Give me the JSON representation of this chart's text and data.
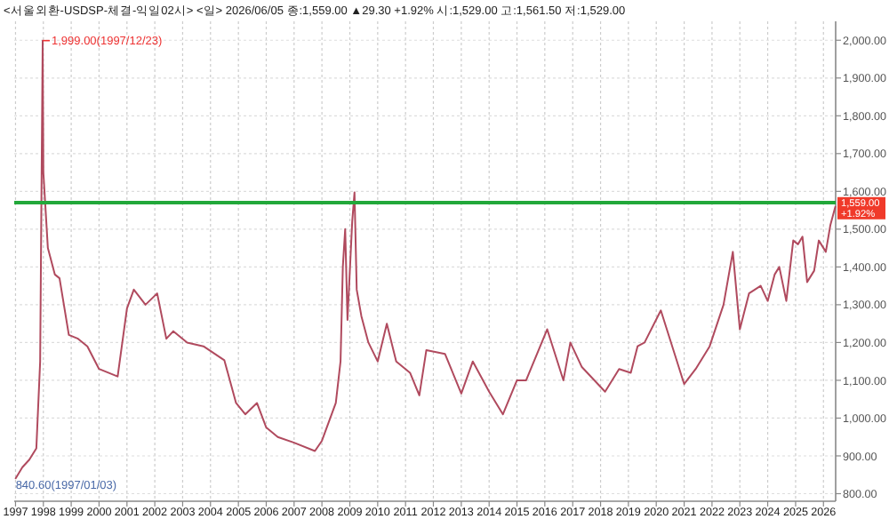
{
  "chart_data": {
    "type": "line",
    "title": "<서울외환-USDSP-체결-익일02시> <일> 2026/06/05 종:1,559.00 ▲29.30 +1.92% 시:1,529.00 고:1,561.50 저:1,529.00",
    "series": [
      {
        "color": "#b04a5e",
        "x": [
          "1997-01-03",
          "1997-04",
          "1997-07",
          "1997-10",
          "1997-11-20",
          "1997-12-23",
          "1998-01",
          "1998-03",
          "1998-06",
          "1998-08",
          "1998-12",
          "1999-04",
          "1999-08",
          "2000-01",
          "2000-09",
          "2001-01",
          "2001-04",
          "2001-09",
          "2002-02",
          "2002-06",
          "2002-09",
          "2003-03",
          "2003-10",
          "2004-07",
          "2004-12",
          "2005-04",
          "2005-09",
          "2006-01",
          "2006-06",
          "2007-01",
          "2007-10",
          "2008-01",
          "2008-04",
          "2008-07",
          "2008-09",
          "2008-10",
          "2008-11",
          "2008-12",
          "2009-02",
          "2009-03-03",
          "2009-04",
          "2009-06",
          "2009-09",
          "2010-01",
          "2010-05",
          "2010-09",
          "2011-03",
          "2011-07",
          "2011-10",
          "2012-06",
          "2013-01",
          "2013-06",
          "2014-01",
          "2014-07",
          "2015-01",
          "2015-05",
          "2016-02",
          "2016-09",
          "2016-12",
          "2017-05",
          "2018-03",
          "2018-09",
          "2019-02",
          "2019-05",
          "2019-08",
          "2020-03",
          "2021-01",
          "2021-06",
          "2021-12",
          "2022-06",
          "2022-10",
          "2023-01",
          "2023-05",
          "2023-10",
          "2024-01",
          "2024-04",
          "2024-06",
          "2024-09",
          "2024-12",
          "2025-02",
          "2025-04",
          "2025-06",
          "2025-09",
          "2025-11",
          "2026-02",
          "2026-04",
          "2026-06-05"
        ],
        "values": [
          840.6,
          870,
          890,
          920,
          1150,
          1999,
          1650,
          1450,
          1380,
          1370,
          1220,
          1210,
          1190,
          1130,
          1110,
          1290,
          1340,
          1300,
          1330,
          1210,
          1230,
          1200,
          1190,
          1153,
          1040,
          1010,
          1040,
          975,
          950,
          935,
          913,
          940,
          990,
          1040,
          1150,
          1400,
          1500,
          1260,
          1520,
          1597,
          1340,
          1270,
          1200,
          1150,
          1250,
          1150,
          1120,
          1060,
          1180,
          1170,
          1065,
          1150,
          1070,
          1010,
          1100,
          1100,
          1235,
          1100,
          1200,
          1135,
          1070,
          1130,
          1120,
          1190,
          1200,
          1285,
          1090,
          1130,
          1190,
          1300,
          1440,
          1235,
          1330,
          1350,
          1310,
          1380,
          1400,
          1310,
          1470,
          1460,
          1480,
          1360,
          1390,
          1470,
          1440,
          1510,
          1559
        ]
      }
    ],
    "xlim": [
      "1996-12-15",
      "2026-06-10"
    ],
    "xticks": [
      "1997",
      "1998",
      "1999",
      "2000",
      "2001",
      "2002",
      "2003",
      "2004",
      "2005",
      "2006",
      "2007",
      "2008",
      "2009",
      "2010",
      "2011",
      "2012",
      "2013",
      "2014",
      "2015",
      "2016",
      "2017",
      "2018",
      "2019",
      "2020",
      "2021",
      "2022",
      "2023",
      "2024",
      "2025",
      "2026"
    ],
    "ylim": [
      780,
      2050
    ],
    "yticks": [
      {
        "value": 800,
        "label": "800.00"
      },
      {
        "value": 900,
        "label": "900.00"
      },
      {
        "value": 1000,
        "label": "1,000.00"
      },
      {
        "value": 1100,
        "label": "1,100.00"
      },
      {
        "value": 1200,
        "label": "1,200.00"
      },
      {
        "value": 1300,
        "label": "1,300.00"
      },
      {
        "value": 1400,
        "label": "1,400.00"
      },
      {
        "value": 1500,
        "label": "1,500.00"
      },
      {
        "value": 1600,
        "label": "1,600.00"
      },
      {
        "value": 1700,
        "label": "1,700.00"
      },
      {
        "value": 1800,
        "label": "1,800.00"
      },
      {
        "value": 1900,
        "label": "1,900.00"
      },
      {
        "value": 2000,
        "label": "2,000.00"
      }
    ],
    "grid": true,
    "ref_lines": [
      {
        "axis": "y",
        "value": 1570,
        "color": "#22a83a"
      }
    ],
    "annotations": [
      {
        "text": "1,999.00(1997/12/23)",
        "x": "1997-12-23",
        "y": 1999
      },
      {
        "text": "840.60(1997/01/03)",
        "x": "1997-01-03",
        "y": 840.6
      },
      {
        "text": "1,559.00",
        "x": "2026-06-05",
        "y": 1559
      },
      {
        "text": "+1.92%",
        "x": "2026-06-05",
        "y": 1559
      }
    ]
  }
}
